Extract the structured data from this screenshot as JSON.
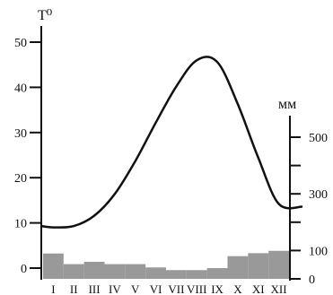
{
  "chart_data": {
    "type": "bar+line",
    "title": "",
    "categories": [
      "I",
      "II",
      "III",
      "IV",
      "V",
      "VI",
      "VII",
      "VIII",
      "IX",
      "X",
      "XI",
      "XII"
    ],
    "temperature": {
      "axis_label": "T⁰",
      "unit": "°",
      "ylim": [
        0,
        50
      ],
      "ticks": [
        0,
        10,
        20,
        30,
        40,
        50
      ],
      "values": [
        9,
        9.3,
        11.6,
        16.4,
        23.7,
        32.2,
        40.2,
        46,
        45.6,
        36.3,
        24.4,
        14.2
      ]
    },
    "precipitation": {
      "axis_label": "мм",
      "ylim": [
        0,
        500
      ],
      "ticks": [
        0,
        100,
        300,
        500
      ],
      "values": [
        44,
        12,
        19,
        12,
        12,
        2,
        -6,
        -6,
        0,
        36,
        45,
        52
      ]
    },
    "colors": {
      "bars": "#999999",
      "line": "#111111",
      "axes": "#111111"
    },
    "grid": false,
    "legend": "none"
  }
}
